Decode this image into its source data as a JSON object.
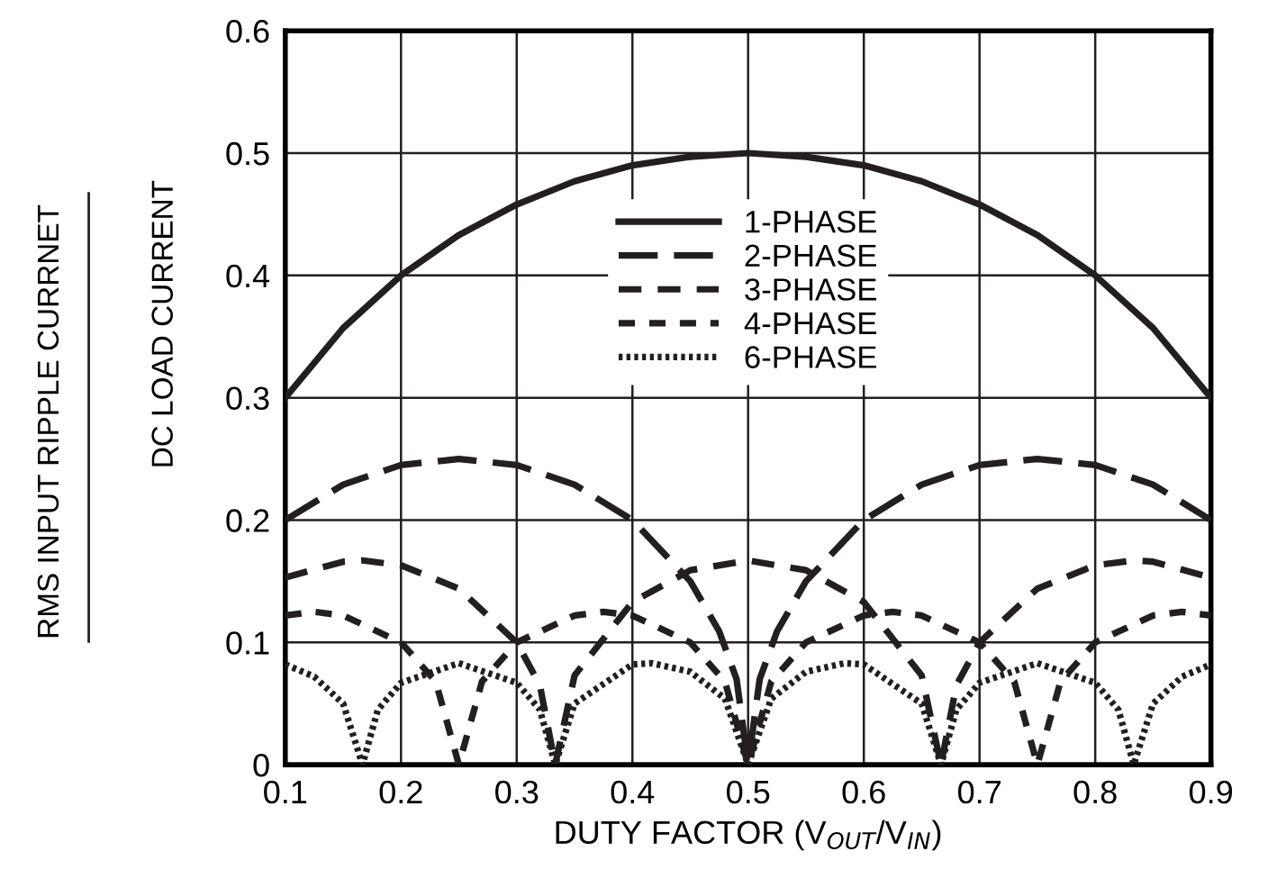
{
  "chart_data": {
    "type": "line",
    "xlabel": "DUTY FACTOR (V$_{OUT}$/V$_{IN}$)",
    "ylabel": "DC LOAD CURRENT",
    "annotations": [
      "RMS INPUT RIPPLE CURRNET"
    ],
    "xlim": [
      0.1,
      0.9
    ],
    "ylim": [
      0,
      0.6
    ],
    "xticks": [
      0.1,
      0.2,
      0.3,
      0.4,
      0.5,
      0.6,
      0.7,
      0.8,
      0.9
    ],
    "yticks": [
      0,
      0.1,
      0.2,
      0.3,
      0.4,
      0.5,
      0.6
    ],
    "grid": true,
    "legend": "top",
    "marker": "none",
    "series": [
      {
        "name": "1-PHASE",
        "color": "#231f20",
        "line_style": "solid",
        "x": [
          0.1,
          0.15,
          0.2,
          0.25,
          0.3,
          0.35,
          0.4,
          0.45,
          0.5,
          0.55,
          0.6,
          0.65,
          0.7,
          0.75,
          0.8,
          0.85,
          0.9
        ],
        "values": [
          0.3,
          0.357,
          0.4,
          0.433,
          0.458,
          0.477,
          0.49,
          0.497,
          0.5,
          0.497,
          0.49,
          0.477,
          0.458,
          0.433,
          0.4,
          0.357,
          0.3
        ]
      },
      {
        "name": "2-PHASE",
        "color": "#231f20",
        "line_style": "dashed",
        "x": [
          0.1,
          0.15,
          0.2,
          0.25,
          0.3,
          0.35,
          0.4,
          0.45,
          0.475,
          0.49,
          0.5,
          0.51,
          0.525,
          0.55,
          0.6,
          0.65,
          0.7,
          0.75,
          0.8,
          0.85,
          0.9
        ],
        "values": [
          0.2,
          0.229,
          0.245,
          0.25,
          0.245,
          0.229,
          0.2,
          0.15,
          0.109,
          0.07,
          0,
          0.07,
          0.109,
          0.15,
          0.2,
          0.229,
          0.245,
          0.25,
          0.245,
          0.229,
          0.2
        ]
      },
      {
        "name": "3-PHASE",
        "color": "#231f20",
        "line_style": "dashed",
        "x": [
          0.1,
          0.15,
          0.1667,
          0.2,
          0.25,
          0.3,
          0.32,
          0.3333,
          0.35,
          0.4,
          0.45,
          0.5,
          0.55,
          0.6,
          0.65,
          0.6667,
          0.68,
          0.7,
          0.75,
          0.8,
          0.8333,
          0.85,
          0.9
        ],
        "values": [
          0.153,
          0.166,
          0.167,
          0.163,
          0.144,
          0.1,
          0.065,
          0,
          0.073,
          0.133,
          0.159,
          0.167,
          0.159,
          0.133,
          0.073,
          0,
          0.065,
          0.1,
          0.144,
          0.163,
          0.167,
          0.166,
          0.153
        ]
      },
      {
        "name": "4-PHASE",
        "color": "#231f20",
        "line_style": "dashed",
        "x": [
          0.1,
          0.125,
          0.15,
          0.2,
          0.23,
          0.25,
          0.27,
          0.3,
          0.35,
          0.375,
          0.4,
          0.45,
          0.48,
          0.5,
          0.52,
          0.55,
          0.6,
          0.625,
          0.65,
          0.7,
          0.73,
          0.75,
          0.77,
          0.8,
          0.85,
          0.875,
          0.9
        ],
        "values": [
          0.122,
          0.125,
          0.122,
          0.1,
          0.068,
          0,
          0.068,
          0.1,
          0.122,
          0.125,
          0.122,
          0.1,
          0.068,
          0,
          0.068,
          0.1,
          0.122,
          0.125,
          0.122,
          0.1,
          0.068,
          0,
          0.068,
          0.1,
          0.122,
          0.125,
          0.122
        ]
      },
      {
        "name": "6-PHASE",
        "color": "#231f20",
        "line_style": "dotted",
        "x": [
          0.1,
          0.125,
          0.15,
          0.1667,
          0.18,
          0.2,
          0.25,
          0.3,
          0.32,
          0.3333,
          0.35,
          0.4,
          0.4167,
          0.45,
          0.48,
          0.5,
          0.52,
          0.55,
          0.5833,
          0.6,
          0.65,
          0.6667,
          0.68,
          0.7,
          0.75,
          0.8,
          0.82,
          0.8333,
          0.85,
          0.875,
          0.9
        ],
        "values": [
          0.082,
          0.072,
          0.05,
          0,
          0.045,
          0.067,
          0.083,
          0.067,
          0.045,
          0,
          0.05,
          0.082,
          0.083,
          0.076,
          0.054,
          0,
          0.054,
          0.076,
          0.083,
          0.082,
          0.05,
          0,
          0.045,
          0.067,
          0.083,
          0.067,
          0.045,
          0,
          0.05,
          0.072,
          0.082
        ]
      }
    ]
  }
}
